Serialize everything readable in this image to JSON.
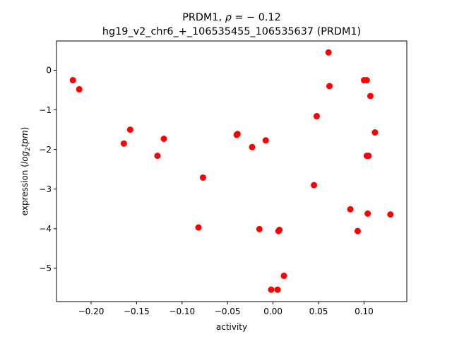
{
  "chart_data": {
    "type": "scatter",
    "title_line1_prefix": "PRDM1, ",
    "title_line1_rho": "ρ",
    "title_line1_suffix": " = − 0.12",
    "title_line2": "hg19_v2_chr6_+_106535455_106535637 (PRDM1)",
    "xlabel": "activity",
    "ylabel_prefix": "expression (",
    "ylabel_log": "log",
    "ylabel_sub": "2",
    "ylabel_tpm": "tpm",
    "ylabel_suffix": ")",
    "xlim": [
      -0.238,
      0.147
    ],
    "ylim": [
      -5.84,
      0.74
    ],
    "xticks": [
      {
        "v": -0.2,
        "label": "−0.20"
      },
      {
        "v": -0.15,
        "label": "−0.15"
      },
      {
        "v": -0.1,
        "label": "−0.10"
      },
      {
        "v": -0.05,
        "label": "−0.05"
      },
      {
        "v": 0.0,
        "label": "0.00"
      },
      {
        "v": 0.05,
        "label": "0.05"
      },
      {
        "v": 0.1,
        "label": "0.10"
      }
    ],
    "yticks": [
      {
        "v": 0,
        "label": "0"
      },
      {
        "v": -1,
        "label": "−1"
      },
      {
        "v": -2,
        "label": "−2"
      },
      {
        "v": -3,
        "label": "−3"
      },
      {
        "v": -4,
        "label": "−4"
      },
      {
        "v": -5,
        "label": "−5"
      }
    ],
    "grid": false,
    "marker_color": "#ff0000",
    "points": [
      {
        "x": -0.22,
        "y": -0.25
      },
      {
        "x": -0.213,
        "y": -0.48
      },
      {
        "x": -0.164,
        "y": -1.85
      },
      {
        "x": -0.157,
        "y": -1.5
      },
      {
        "x": -0.127,
        "y": -2.16
      },
      {
        "x": -0.12,
        "y": -1.73
      },
      {
        "x": -0.082,
        "y": -3.97
      },
      {
        "x": -0.077,
        "y": -2.71
      },
      {
        "x": -0.04,
        "y": -1.63
      },
      {
        "x": -0.039,
        "y": -1.61
      },
      {
        "x": -0.023,
        "y": -1.94
      },
      {
        "x": -0.015,
        "y": -4.01
      },
      {
        "x": -0.008,
        "y": -1.77
      },
      {
        "x": -0.002,
        "y": -5.54
      },
      {
        "x": 0.005,
        "y": -5.54
      },
      {
        "x": 0.006,
        "y": -4.06
      },
      {
        "x": 0.007,
        "y": -4.03
      },
      {
        "x": 0.012,
        "y": -5.19
      },
      {
        "x": 0.045,
        "y": -2.9
      },
      {
        "x": 0.048,
        "y": -1.16
      },
      {
        "x": 0.061,
        "y": 0.45
      },
      {
        "x": 0.062,
        "y": -0.4
      },
      {
        "x": 0.085,
        "y": -3.51
      },
      {
        "x": 0.093,
        "y": -4.06
      },
      {
        "x": 0.1,
        "y": -0.25
      },
      {
        "x": 0.103,
        "y": -0.25
      },
      {
        "x": 0.103,
        "y": -2.16
      },
      {
        "x": 0.104,
        "y": -3.62
      },
      {
        "x": 0.105,
        "y": -2.16
      },
      {
        "x": 0.107,
        "y": -0.65
      },
      {
        "x": 0.112,
        "y": -1.57
      },
      {
        "x": 0.129,
        "y": -3.64
      }
    ]
  }
}
